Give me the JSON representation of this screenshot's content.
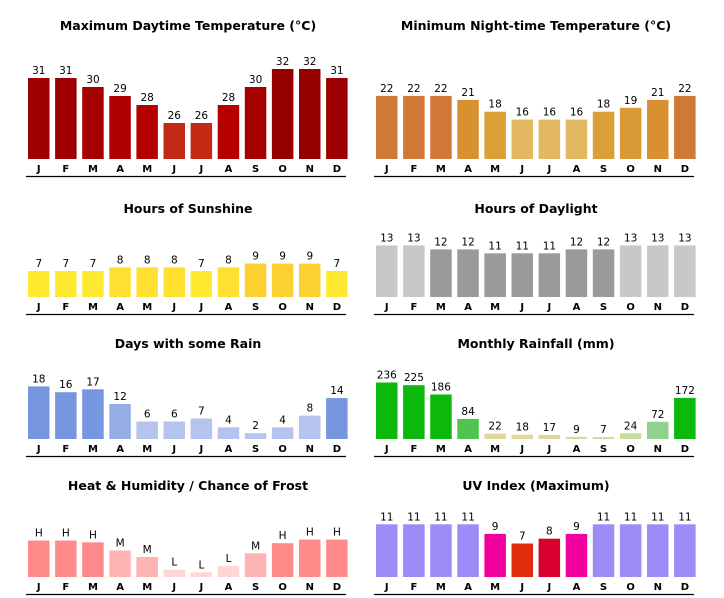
{
  "months": [
    "J",
    "F",
    "M",
    "A",
    "M",
    "J",
    "J",
    "A",
    "S",
    "O",
    "N",
    "D"
  ],
  "chart_data": [
    {
      "type": "bar",
      "title": "Maximum Daytime Temperature (°C)",
      "categories": [
        "J",
        "F",
        "M",
        "A",
        "M",
        "J",
        "J",
        "A",
        "S",
        "O",
        "N",
        "D"
      ],
      "values": [
        31,
        31,
        30,
        29,
        28,
        26,
        26,
        28,
        30,
        32,
        32,
        31
      ],
      "labels": [
        "31",
        "31",
        "30",
        "29",
        "28",
        "26",
        "26",
        "28",
        "30",
        "32",
        "32",
        "31"
      ],
      "colors": [
        "#9c0000",
        "#9c0000",
        "#a50000",
        "#ad0000",
        "#b60000",
        "#c22a15",
        "#c22a15",
        "#b60000",
        "#a50000",
        "#940000",
        "#940000",
        "#9c0000"
      ],
      "ylim": [
        22,
        33
      ]
    },
    {
      "type": "bar",
      "title": "Minimum Night-time Temperature (°C)",
      "categories": [
        "J",
        "F",
        "M",
        "A",
        "M",
        "J",
        "J",
        "A",
        "S",
        "O",
        "N",
        "D"
      ],
      "values": [
        22,
        22,
        22,
        21,
        18,
        16,
        16,
        16,
        18,
        19,
        21,
        22
      ],
      "labels": [
        "22",
        "22",
        "22",
        "21",
        "18",
        "16",
        "16",
        "16",
        "18",
        "19",
        "21",
        "22"
      ],
      "colors": [
        "#d07835",
        "#d07835",
        "#d07835",
        "#d89030",
        "#daa038",
        "#e2b860",
        "#e2b860",
        "#e2b860",
        "#daa038",
        "#d89a35",
        "#d89030",
        "#d07835"
      ],
      "ylim": [
        6,
        23
      ]
    },
    {
      "type": "bar",
      "title": "Hours of Sunshine",
      "categories": [
        "J",
        "F",
        "M",
        "A",
        "M",
        "J",
        "J",
        "A",
        "S",
        "O",
        "N",
        "D"
      ],
      "values": [
        7,
        7,
        7,
        8,
        8,
        8,
        7,
        8,
        9,
        9,
        9,
        7
      ],
      "labels": [
        "7",
        "7",
        "7",
        "8",
        "8",
        "8",
        "7",
        "8",
        "9",
        "9",
        "9",
        "7"
      ],
      "colors": [
        "#ffe930",
        "#ffe930",
        "#ffe930",
        "#ffe030",
        "#ffe030",
        "#ffe030",
        "#ffe930",
        "#ffe030",
        "#fcd030",
        "#fcd030",
        "#fcd030",
        "#ffe930"
      ],
      "ylim": [
        0,
        10.5
      ]
    },
    {
      "type": "bar",
      "title": "Hours of Daylight",
      "categories": [
        "J",
        "F",
        "M",
        "A",
        "M",
        "J",
        "J",
        "A",
        "S",
        "O",
        "N",
        "D"
      ],
      "values": [
        13,
        13,
        12,
        12,
        11,
        11,
        11,
        12,
        12,
        13,
        13,
        13
      ],
      "labels": [
        "13",
        "13",
        "12",
        "12",
        "11",
        "11",
        "11",
        "12",
        "12",
        "13",
        "13",
        "13"
      ],
      "colors": [
        "#c8c8c8",
        "#c8c8c8",
        "#9a9a9a",
        "#9a9a9a",
        "#9a9a9a",
        "#9a9a9a",
        "#9a9a9a",
        "#9a9a9a",
        "#9a9a9a",
        "#c8c8c8",
        "#c8c8c8",
        "#c8c8c8"
      ],
      "ylim": [
        0,
        13.6
      ]
    },
    {
      "type": "bar",
      "title": "Days with some Rain",
      "categories": [
        "J",
        "F",
        "M",
        "A",
        "M",
        "J",
        "J",
        "A",
        "S",
        "O",
        "N",
        "D"
      ],
      "values": [
        18,
        16,
        17,
        12,
        6,
        6,
        7,
        4,
        2,
        4,
        8,
        14
      ],
      "labels": [
        "18",
        "16",
        "17",
        "12",
        "6",
        "6",
        "7",
        "4",
        "2",
        "4",
        "8",
        "14"
      ],
      "colors": [
        "#7696e0",
        "#7696e0",
        "#7696e0",
        "#96aee6",
        "#b4c4ee",
        "#b4c4ee",
        "#b4c4ee",
        "#b4c4ee",
        "#b4c4ee",
        "#b4c4ee",
        "#b4c4ee",
        "#7696e0"
      ],
      "ylim": [
        0,
        19.5
      ]
    },
    {
      "type": "bar",
      "title": "Monthly Rainfall (mm)",
      "categories": [
        "J",
        "F",
        "M",
        "A",
        "M",
        "J",
        "J",
        "A",
        "S",
        "O",
        "N",
        "D"
      ],
      "values": [
        236,
        225,
        186,
        84,
        22,
        18,
        17,
        9,
        7,
        24,
        72,
        172
      ],
      "labels": [
        "236",
        "225",
        "186",
        "84",
        "22",
        "18",
        "17",
        "9",
        "7",
        "24",
        "72",
        "172"
      ],
      "colors": [
        "#0cb80c",
        "#0cb80c",
        "#0cb80c",
        "#50c450",
        "#e0d898",
        "#e0d898",
        "#e0d898",
        "#e0d898",
        "#e0d898",
        "#c6de98",
        "#8ed28e",
        "#0cb80c"
      ],
      "ylim": [
        0,
        255
      ]
    },
    {
      "type": "bar",
      "title": "Heat & Humidity / Chance of Frost",
      "categories": [
        "J",
        "F",
        "M",
        "A",
        "M",
        "J",
        "J",
        "A",
        "S",
        "O",
        "N",
        "D"
      ],
      "values": [
        4,
        4,
        3.8,
        2.9,
        2.2,
        0.8,
        0.5,
        1.2,
        2.6,
        3.7,
        4.1,
        4.1
      ],
      "labels": [
        "H",
        "H",
        "H",
        "M",
        "M",
        "L",
        "L",
        "L",
        "M",
        "H",
        "H",
        "H"
      ],
      "colors": [
        "#ff8a8a",
        "#ff8a8a",
        "#ff8a8a",
        "#ffb4b4",
        "#ffb4b4",
        "#ffd6d6",
        "#ffd6d6",
        "#ffd6d6",
        "#ffb4b4",
        "#ff8a8a",
        "#ff8a8a",
        "#ff8a8a"
      ],
      "ylim": [
        0,
        4.6
      ]
    },
    {
      "type": "bar",
      "title": "UV Index (Maximum)",
      "categories": [
        "J",
        "F",
        "M",
        "A",
        "M",
        "J",
        "J",
        "A",
        "S",
        "O",
        "N",
        "D"
      ],
      "values": [
        11,
        11,
        11,
        11,
        9,
        7,
        8,
        9,
        11,
        11,
        11,
        11
      ],
      "labels": [
        "11",
        "11",
        "11",
        "11",
        "9",
        "7",
        "8",
        "9",
        "11",
        "11",
        "11",
        "11"
      ],
      "colors": [
        "#9c8cf8",
        "#9c8cf8",
        "#9c8cf8",
        "#9c8cf8",
        "#f0009c",
        "#e02c0c",
        "#d8002c",
        "#f0009c",
        "#9c8cf8",
        "#9c8cf8",
        "#9c8cf8",
        "#9c8cf8"
      ],
      "ylim": [
        0,
        11.9
      ]
    }
  ]
}
